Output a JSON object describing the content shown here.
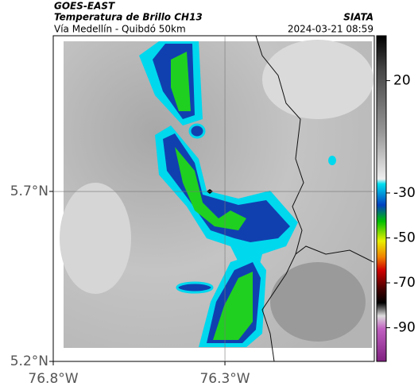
{
  "header": {
    "source": "GOES-EAST",
    "title": "Temperatura de Brillo CH13",
    "subtitle": "Vía Medellín - Quibdó 50km",
    "agency": "SIATA",
    "datetime": "2024-03-21 08:59"
  },
  "map": {
    "xlim": [
      -76.8,
      -75.865
    ],
    "ylim": [
      5.2,
      6.158
    ],
    "xticks": [
      {
        "value": -76.8,
        "label": "76.8°W"
      },
      {
        "value": -76.3,
        "label": "76.3°W"
      }
    ],
    "yticks": [
      {
        "value": 5.2,
        "label": "5.2°N"
      },
      {
        "value": 5.7,
        "label": "5.7°N"
      }
    ],
    "grid": true
  },
  "colorbar": {
    "clim": [
      40,
      -105
    ],
    "ticks": [
      20,
      -30,
      -50,
      -70,
      -90
    ]
  }
}
